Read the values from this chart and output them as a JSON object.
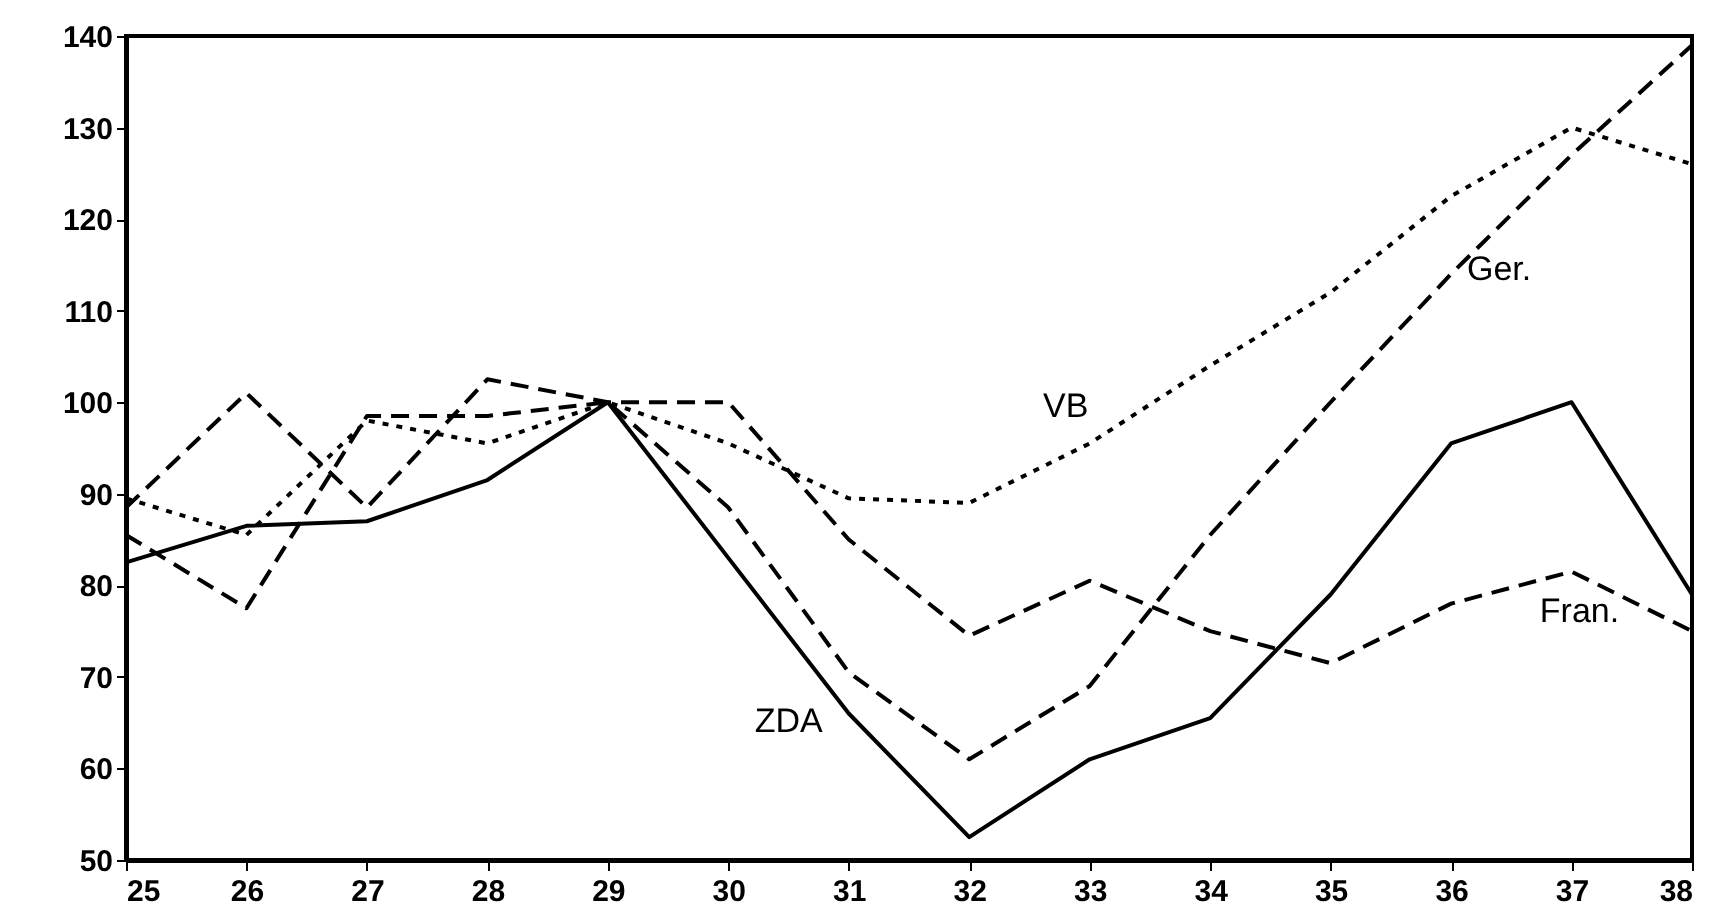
{
  "chart_data": {
    "type": "line",
    "x": [
      25,
      26,
      27,
      28,
      29,
      30,
      31,
      32,
      33,
      34,
      35,
      36,
      37,
      38
    ],
    "xlim": [
      25,
      38
    ],
    "xticks": [
      25,
      26,
      27,
      28,
      29,
      30,
      31,
      32,
      33,
      34,
      35,
      36,
      37,
      38
    ],
    "ylim": [
      50,
      140
    ],
    "yticks": [
      50,
      60,
      70,
      80,
      90,
      100,
      110,
      120,
      130,
      140
    ],
    "grid": false,
    "series": [
      {
        "name": "ZDA",
        "color": "#000000",
        "line_style": "solid",
        "values": [
          82.5,
          86.5,
          87,
          91.5,
          100,
          83,
          66,
          52.5,
          61,
          65.5,
          79,
          95.5,
          100,
          79
        ]
      },
      {
        "name": "Ger.",
        "color": "#000000",
        "line_style": "dashed",
        "values": [
          85.5,
          77.5,
          98.5,
          98.5,
          100,
          88.5,
          70.5,
          61,
          69,
          85.5,
          100,
          114,
          127,
          139
        ]
      },
      {
        "name": "VB",
        "color": "#000000",
        "line_style": "dotted",
        "values": [
          89.5,
          85.5,
          98,
          95.5,
          100,
          95.5,
          89.5,
          89,
          95.5,
          104,
          112,
          122.5,
          130,
          126
        ]
      },
      {
        "name": "Fran.",
        "color": "#000000",
        "line_style": "dashed",
        "values": [
          88.5,
          101,
          88.5,
          102.5,
          100,
          100,
          85,
          74.5,
          80.5,
          75,
          71.5,
          78,
          81.5,
          75
        ]
      }
    ]
  }
}
